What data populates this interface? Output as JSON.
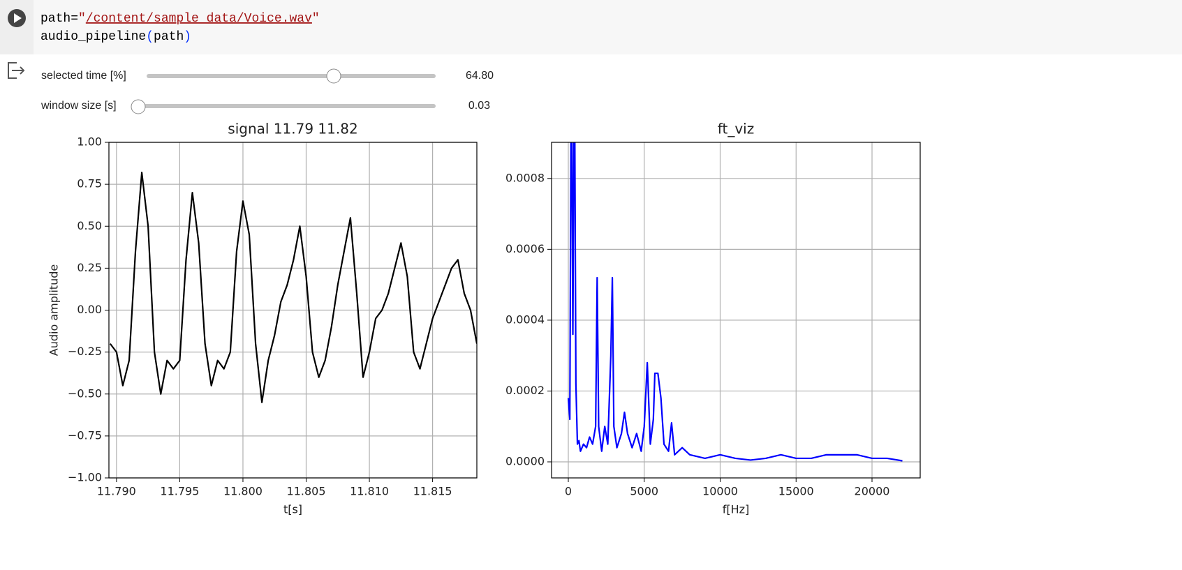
{
  "cell": {
    "code": [
      [
        "path=",
        "\"",
        "/content/sample_data/Voice.wav",
        "\""
      ],
      [
        "audio_pipeline",
        "(",
        "path",
        ")"
      ]
    ]
  },
  "widgets": [
    {
      "label": "selected time [%]",
      "value": "64.80"
    },
    {
      "label": "window size [s]",
      "value": "0.03"
    }
  ],
  "chart_data": [
    {
      "type": "line",
      "title": "signal 11.79 11.82",
      "x_label": "t[s]",
      "y_label": "Audio amplitude",
      "color": "#000000",
      "grid": true,
      "xlim": [
        11.7894,
        11.8185
      ],
      "ylim": [
        -1,
        1
      ],
      "xticks": [
        {
          "value": 11.79,
          "label": "11.790"
        },
        {
          "value": 11.795,
          "label": "11.795"
        },
        {
          "value": 11.8,
          "label": "11.800"
        },
        {
          "value": 11.805,
          "label": "11.805"
        },
        {
          "value": 11.81,
          "label": "11.810"
        },
        {
          "value": 11.815,
          "label": "11.815"
        }
      ],
      "yticks": [
        {
          "value": -1,
          "label": "−1.00"
        },
        {
          "value": -0.75,
          "label": "−0.75"
        },
        {
          "value": -0.5,
          "label": "−0.50"
        },
        {
          "value": -0.25,
          "label": "−0.25"
        },
        {
          "value": 0,
          "label": "0.00"
        },
        {
          "value": 0.25,
          "label": "0.25"
        },
        {
          "value": 0.5,
          "label": "0.50"
        },
        {
          "value": 0.75,
          "label": "0.75"
        },
        {
          "value": 1,
          "label": "1.00"
        }
      ],
      "x": [
        11.7895,
        11.79,
        11.7905,
        11.791,
        11.7915,
        11.792,
        11.7925,
        11.793,
        11.7935,
        11.794,
        11.7945,
        11.795,
        11.7955,
        11.796,
        11.7965,
        11.797,
        11.7975,
        11.798,
        11.7985,
        11.799,
        11.7995,
        11.8,
        11.8005,
        11.801,
        11.8015,
        11.802,
        11.8025,
        11.803,
        11.8035,
        11.804,
        11.8045,
        11.805,
        11.8055,
        11.806,
        11.8065,
        11.807,
        11.8075,
        11.808,
        11.8085,
        11.809,
        11.8095,
        11.81,
        11.8105,
        11.811,
        11.8115,
        11.812,
        11.8125,
        11.813,
        11.8135,
        11.814,
        11.8145,
        11.815,
        11.8155,
        11.816,
        11.8165,
        11.817,
        11.8175,
        11.818,
        11.8185
      ],
      "values": [
        -0.2,
        -0.25,
        -0.45,
        -0.3,
        0.35,
        0.82,
        0.5,
        -0.25,
        -0.5,
        -0.3,
        -0.35,
        -0.3,
        0.3,
        0.7,
        0.4,
        -0.2,
        -0.45,
        -0.3,
        -0.35,
        -0.25,
        0.35,
        0.65,
        0.45,
        -0.2,
        -0.55,
        -0.3,
        -0.15,
        0.05,
        0.15,
        0.3,
        0.5,
        0.2,
        -0.25,
        -0.4,
        -0.3,
        -0.1,
        0.15,
        0.35,
        0.55,
        0.1,
        -0.4,
        -0.25,
        -0.05,
        0,
        0.1,
        0.25,
        0.4,
        0.2,
        -0.25,
        -0.35,
        -0.2,
        -0.05,
        0.05,
        0.15,
        0.25,
        0.3,
        0.1,
        0,
        -0.2
      ]
    },
    {
      "type": "line",
      "title": "ft_viz",
      "x_label": "f[Hz]",
      "color": "#0000ff",
      "grid": true,
      "xlim": [
        -1103,
        23172
      ],
      "ylim": [
        -4.53e-05,
        0.000902
      ],
      "xticks": [
        0,
        5000,
        10000,
        15000,
        20000
      ],
      "yticks": [
        {
          "value": 0,
          "label": "0.0000"
        },
        {
          "value": 0.0002,
          "label": "0.0002"
        },
        {
          "value": 0.0004,
          "label": "0.0004"
        },
        {
          "value": 0.0006,
          "label": "0.0006"
        },
        {
          "value": 0.0008,
          "label": "0.0008"
        }
      ],
      "x": [
        0,
        100,
        200,
        300,
        400,
        500,
        600,
        700,
        800,
        1000,
        1200,
        1400,
        1600,
        1800,
        1900,
        2000,
        2200,
        2400,
        2600,
        2800,
        2900,
        3000,
        3200,
        3500,
        3700,
        3900,
        4200,
        4500,
        4800,
        5000,
        5200,
        5400,
        5600,
        5700,
        5900,
        6100,
        6300,
        6600,
        6800,
        7000,
        7500,
        8000,
        9000,
        10000,
        11000,
        12000,
        13000,
        14000,
        15000,
        16000,
        17000,
        18000,
        19000,
        20000,
        21000,
        22000
      ],
      "values": [
        0.00018,
        0.00012,
        0.0012,
        0.00036,
        0.0012,
        0.00022,
        5e-05,
        6e-05,
        3e-05,
        5e-05,
        4e-05,
        7e-05,
        5e-05,
        0.0001,
        0.00052,
        0.0001,
        3e-05,
        0.0001,
        5e-05,
        0.0003,
        0.00052,
        0.0001,
        4e-05,
        8e-05,
        0.00014,
        8e-05,
        4e-05,
        8e-05,
        3e-05,
        0.0001,
        0.00028,
        5e-05,
        0.00012,
        0.00025,
        0.00025,
        0.00018,
        5e-05,
        3e-05,
        0.00011,
        2e-05,
        4e-05,
        2e-05,
        1e-05,
        2e-05,
        1e-05,
        5e-06,
        1e-05,
        2e-05,
        1e-05,
        1e-05,
        2e-05,
        2e-05,
        2e-05,
        1e-05,
        1e-05,
        3e-06
      ]
    }
  ]
}
